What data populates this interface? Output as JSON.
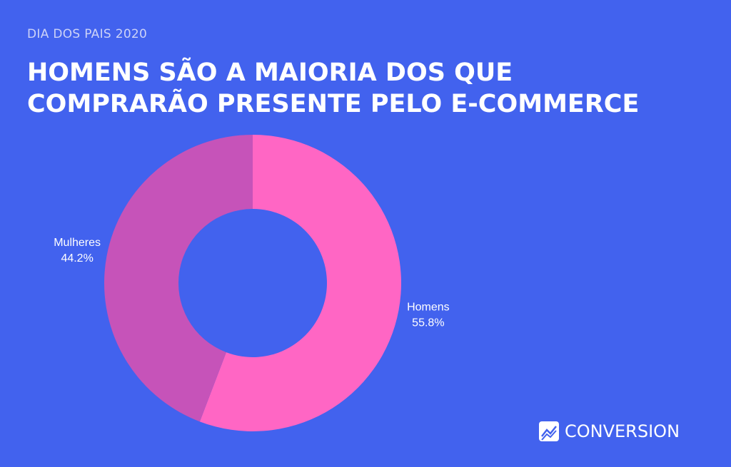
{
  "chart_data": {
    "type": "pie",
    "donut": true,
    "subtitle": "DIA DOS PAIS 2020",
    "title": "HOMENS SÃO A MAIORIA DOS QUE COMPRARÃO PRESENTE PELO E-COMMERCE",
    "categories": [
      "Homens",
      "Mulheres"
    ],
    "values": [
      55.8,
      44.2
    ],
    "value_labels": [
      "55.8%",
      "44.2%"
    ],
    "colors": [
      "#ff66c4",
      "#c653b9"
    ],
    "brand": "CONVERSION"
  }
}
